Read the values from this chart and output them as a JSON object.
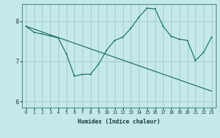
{
  "xlabel": "Humidex (Indice chaleur)",
  "bg_color": "#c5e8e8",
  "line_color": "#1a7060",
  "grid_color": "#9ecece",
  "xlim": [
    -0.5,
    23.5
  ],
  "ylim": [
    5.85,
    8.42
  ],
  "yticks": [
    6,
    7,
    8
  ],
  "xticks": [
    0,
    1,
    2,
    3,
    4,
    5,
    6,
    7,
    8,
    9,
    10,
    11,
    12,
    13,
    14,
    15,
    16,
    17,
    18,
    19,
    20,
    21,
    22,
    23
  ],
  "series1_x": [
    0,
    1,
    2,
    3,
    4,
    5,
    6,
    7,
    8,
    9,
    10,
    11,
    12,
    13,
    14,
    15,
    16,
    17,
    18,
    19,
    20,
    21,
    22,
    23
  ],
  "series1_y": [
    7.87,
    7.72,
    7.68,
    7.63,
    7.58,
    7.18,
    6.63,
    6.68,
    6.68,
    6.93,
    7.28,
    7.52,
    7.6,
    7.82,
    8.1,
    8.32,
    8.3,
    7.87,
    7.62,
    7.55,
    7.52,
    7.02,
    7.22,
    7.6
  ],
  "trend_x": [
    0,
    1,
    2,
    3,
    4,
    5,
    6,
    7,
    8,
    9,
    10,
    11,
    12,
    13,
    14,
    15,
    16,
    17,
    18,
    19,
    20,
    21,
    22,
    23
  ],
  "trend_y": [
    7.87,
    7.8,
    7.73,
    7.66,
    7.59,
    7.52,
    7.45,
    7.38,
    7.31,
    7.24,
    7.17,
    7.1,
    7.03,
    6.96,
    6.89,
    6.82,
    6.75,
    6.68,
    6.61,
    6.54,
    6.47,
    6.4,
    6.33,
    6.26
  ]
}
